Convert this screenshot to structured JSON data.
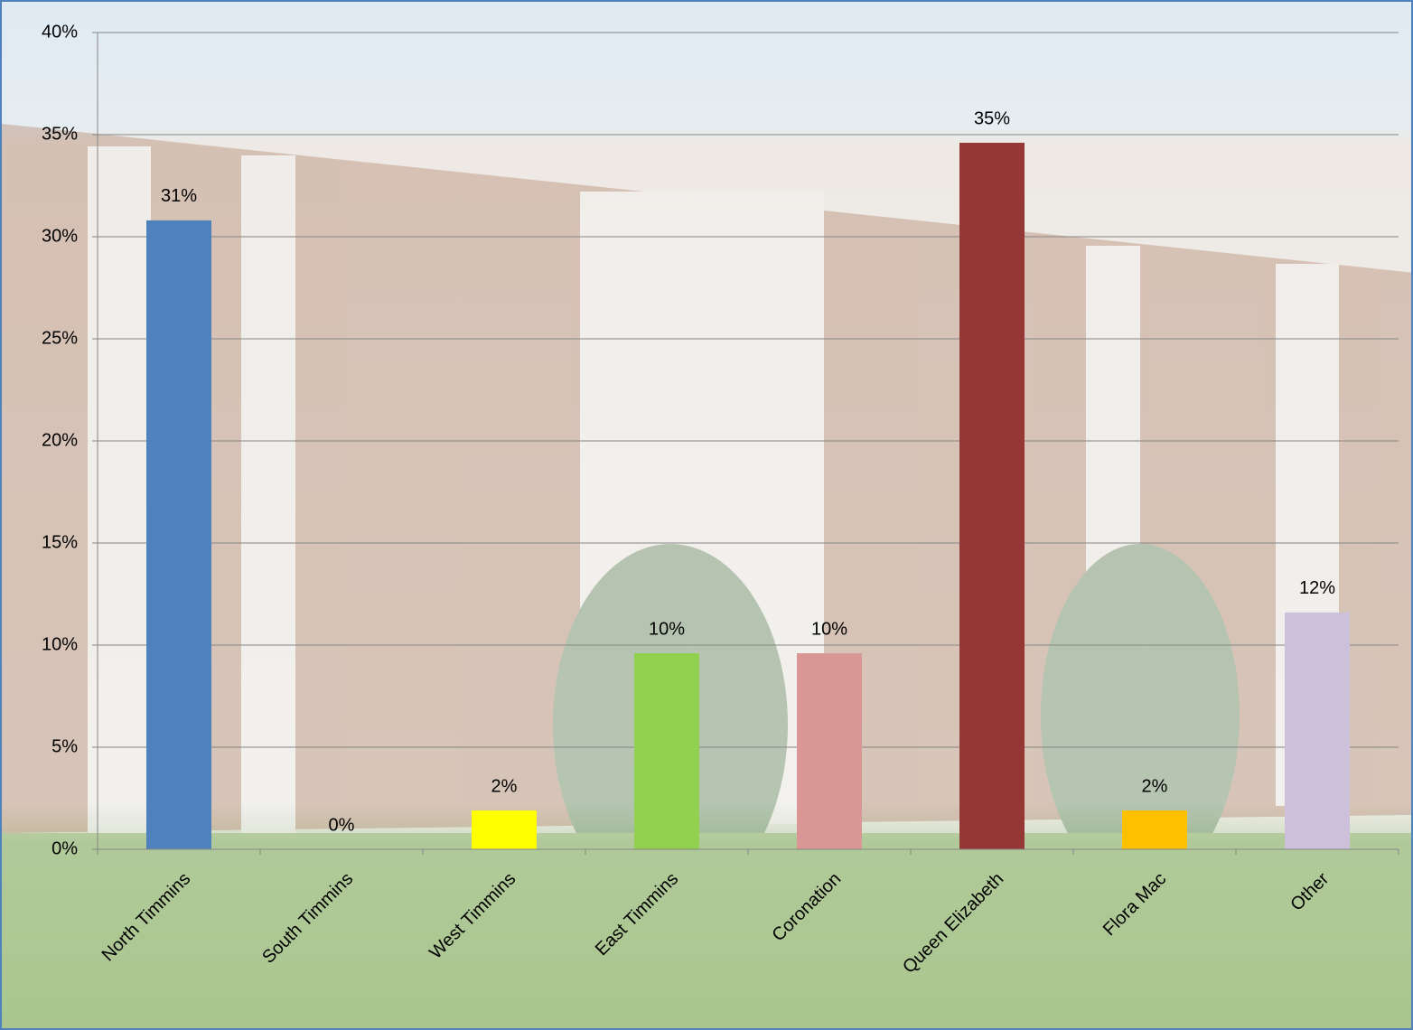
{
  "chart_data": {
    "type": "bar",
    "categories": [
      "North Timmins",
      "South Timmins",
      "West Timmins",
      "East Timmins",
      "Coronation",
      "Queen Elizabeth",
      "Flora Mac",
      "Other"
    ],
    "values": [
      30.8,
      0,
      1.9,
      9.6,
      9.6,
      34.6,
      1.9,
      11.6
    ],
    "value_labels": [
      "31%",
      "0%",
      "2%",
      "10%",
      "10%",
      "35%",
      "2%",
      "12%"
    ],
    "colors": [
      "#4f81bd",
      "#c0504d",
      "#ffff00",
      "#92d050",
      "#d99694",
      "#953735",
      "#ffc000",
      "#ccc0da"
    ],
    "ylim": [
      0,
      40
    ],
    "yticks": [
      {
        "value": 0,
        "label": "0%"
      },
      {
        "value": 5,
        "label": "5%"
      },
      {
        "value": 10,
        "label": "10%"
      },
      {
        "value": 15,
        "label": "15%"
      },
      {
        "value": 20,
        "label": "20%"
      },
      {
        "value": 25,
        "label": "25%"
      },
      {
        "value": 30,
        "label": "30%"
      },
      {
        "value": 35,
        "label": "35%"
      },
      {
        "value": 40,
        "label": "40%"
      }
    ],
    "grid": true
  }
}
